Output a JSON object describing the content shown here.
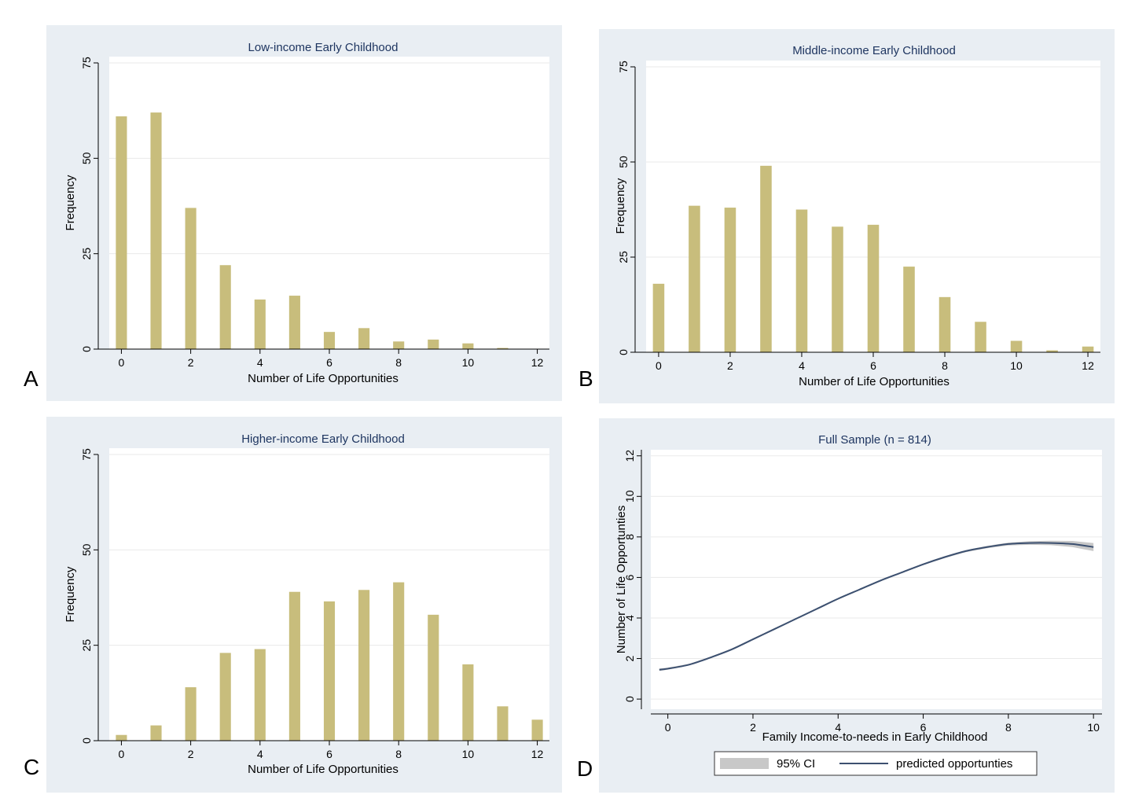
{
  "panels": [
    {
      "id": "A",
      "letter": "A"
    },
    {
      "id": "B",
      "letter": "B"
    },
    {
      "id": "C",
      "letter": "C"
    },
    {
      "id": "D",
      "letter": "D"
    }
  ],
  "chart_data": [
    {
      "type": "bar",
      "title": "Low-income Early Childhood",
      "xlabel": "Number of Life Opportunities",
      "ylabel": "Frequency",
      "xlim": [
        0,
        12
      ],
      "ylim": [
        0,
        75
      ],
      "xticks": [
        0,
        2,
        4,
        6,
        8,
        10,
        12
      ],
      "yticks": [
        0,
        25,
        50,
        75
      ],
      "grid": true,
      "categories": [
        0,
        1,
        2,
        3,
        4,
        5,
        6,
        7,
        8,
        9,
        10,
        11,
        12
      ],
      "values": [
        61,
        62,
        37,
        22,
        13,
        14,
        4.5,
        5.5,
        2,
        2.5,
        1.5,
        0.3,
        0
      ],
      "colors": {
        "bar": "#c8bd7c",
        "plot_bg": "#ffffff",
        "panel_bg": "#e9eef3",
        "title": "#1e3560",
        "grid": "#eaeaea"
      }
    },
    {
      "type": "bar",
      "title": "Middle-income Early Childhood",
      "xlabel": "Number of Life Opportunities",
      "ylabel": "Frequency",
      "xlim": [
        0,
        12
      ],
      "ylim": [
        0,
        75
      ],
      "xticks": [
        0,
        2,
        4,
        6,
        8,
        10,
        12
      ],
      "yticks": [
        0,
        25,
        50,
        75
      ],
      "grid": true,
      "categories": [
        0,
        1,
        2,
        3,
        4,
        5,
        6,
        7,
        8,
        9,
        10,
        11,
        12
      ],
      "values": [
        18,
        38.5,
        38,
        49,
        37.5,
        33,
        33.5,
        22.5,
        14.5,
        8,
        3,
        0.5,
        1.5
      ],
      "colors": {
        "bar": "#c8bd7c",
        "plot_bg": "#ffffff",
        "panel_bg": "#e9eef3",
        "title": "#1e3560",
        "grid": "#eaeaea"
      }
    },
    {
      "type": "bar",
      "title": "Higher-income Early Childhood",
      "xlabel": "Number of Life Opportunities",
      "ylabel": "Frequency",
      "xlim": [
        0,
        12
      ],
      "ylim": [
        0,
        75
      ],
      "xticks": [
        0,
        2,
        4,
        6,
        8,
        10,
        12
      ],
      "yticks": [
        0,
        25,
        50,
        75
      ],
      "grid": true,
      "categories": [
        0,
        1,
        2,
        3,
        4,
        5,
        6,
        7,
        8,
        9,
        10,
        11,
        12
      ],
      "values": [
        1.5,
        4,
        14,
        23,
        24,
        39,
        36.5,
        39.5,
        41.5,
        33,
        20,
        9,
        5.5
      ],
      "colors": {
        "bar": "#c8bd7c",
        "plot_bg": "#ffffff",
        "panel_bg": "#e9eef3",
        "title": "#1e3560",
        "grid": "#eaeaea"
      }
    },
    {
      "type": "line",
      "title": "Full Sample (n = 814)",
      "xlabel": "Family Income-to-needs in Early Childhood",
      "ylabel": "Number of Life Opportunties",
      "xlim": [
        -0.4,
        10.2
      ],
      "ylim": [
        -0.5,
        12.3
      ],
      "xticks": [
        0,
        2,
        4,
        6,
        8,
        10
      ],
      "yticks": [
        0,
        2,
        4,
        6,
        8,
        10,
        12
      ],
      "grid": true,
      "legend_position": "bottom",
      "series": [
        {
          "name": "predicted opportunties",
          "x": [
            -0.2,
            0,
            0.5,
            1,
            1.5,
            2,
            2.5,
            3,
            3.5,
            4,
            4.5,
            5,
            5.5,
            6,
            6.5,
            7,
            7.5,
            8,
            8.5,
            9,
            9.5,
            10
          ],
          "y": [
            1.45,
            1.5,
            1.7,
            2.05,
            2.45,
            2.95,
            3.45,
            3.95,
            4.45,
            4.95,
            5.4,
            5.85,
            6.25,
            6.65,
            7.0,
            7.3,
            7.5,
            7.65,
            7.7,
            7.7,
            7.65,
            7.5
          ],
          "ci_halfwidth": [
            0.06,
            0.05,
            0.04,
            0.04,
            0.04,
            0.04,
            0.04,
            0.04,
            0.04,
            0.04,
            0.04,
            0.04,
            0.04,
            0.04,
            0.05,
            0.05,
            0.06,
            0.07,
            0.09,
            0.11,
            0.15,
            0.2
          ]
        }
      ],
      "legend": [
        {
          "label": "95% CI",
          "kind": "band"
        },
        {
          "label": "predicted opportunties",
          "kind": "line"
        }
      ],
      "colors": {
        "line": "#3c5070",
        "band": "#c8c8c8",
        "plot_bg": "#ffffff",
        "panel_bg": "#e9eef3",
        "title": "#1e3560",
        "grid": "#eaeaea"
      }
    }
  ]
}
